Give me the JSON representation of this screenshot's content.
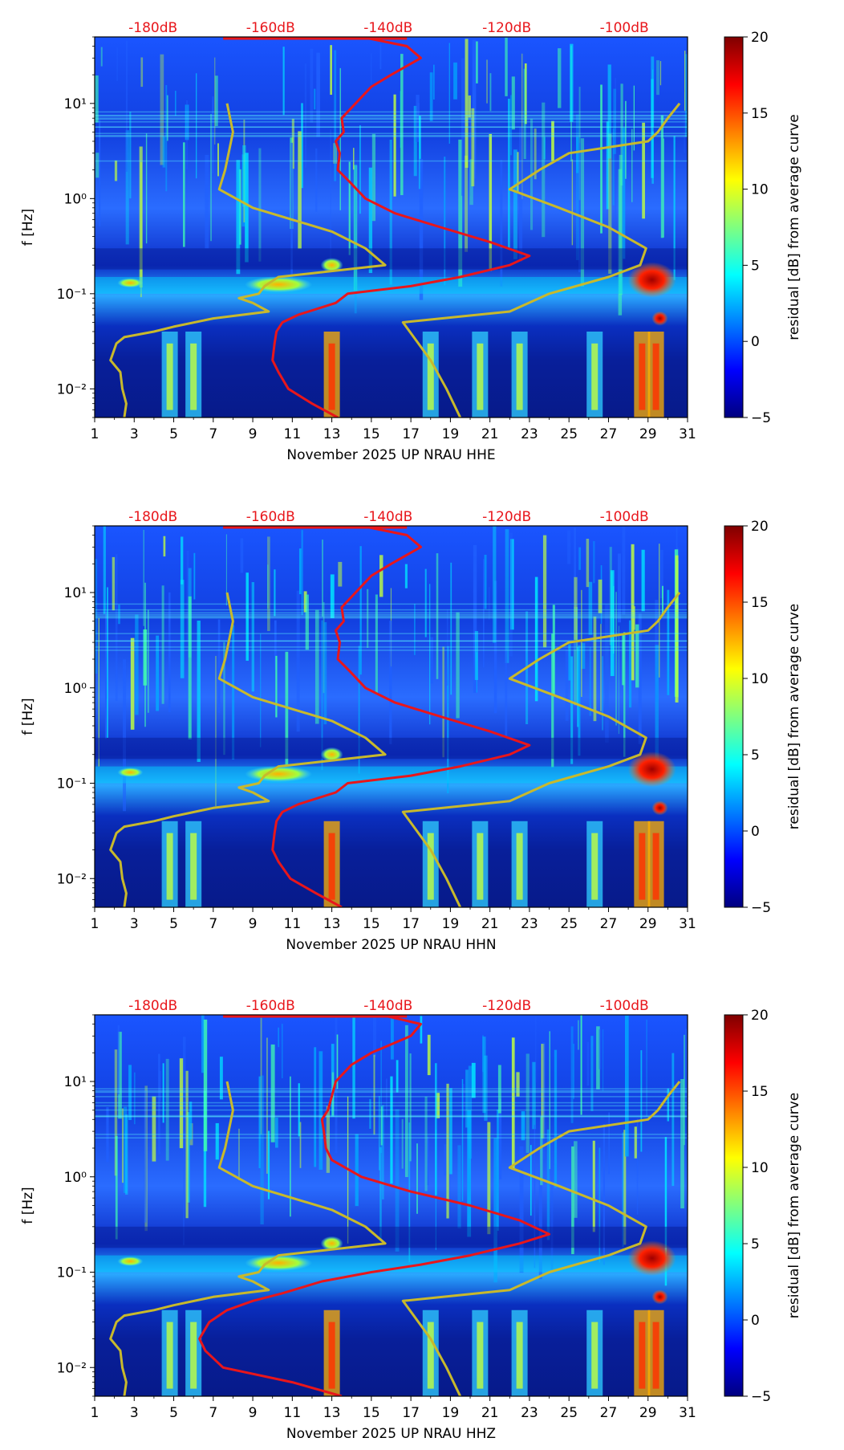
{
  "chart_data": [
    {
      "type": "heatmap",
      "panel": "HHE",
      "xlabel": "November 2025 UP NRAU  HHE",
      "ylabel": "f [Hz]",
      "x_ticks": [
        "1",
        "3",
        "5",
        "7",
        "9",
        "11",
        "13",
        "15",
        "17",
        "19",
        "21",
        "23",
        "25",
        "27",
        "29",
        "31"
      ],
      "x_range": [
        1,
        31
      ],
      "y_range": [
        0.005,
        50
      ],
      "y_ticks": [
        "10⁻²",
        "10⁻¹",
        "10⁰",
        "10¹"
      ],
      "top_labels": [
        "-180dB",
        "-160dB",
        "-140dB",
        "-120dB",
        "-100dB"
      ],
      "top_label_x": [
        3.95,
        9.9,
        15.85,
        21.85,
        27.8
      ],
      "colorbar": {
        "label": "residual [dB] from average curve",
        "min": -5,
        "max": 20,
        "ticks": [
          "20",
          "15",
          "10",
          "5",
          "0",
          "−5"
        ]
      },
      "red_curve_f": [
        50,
        40,
        30,
        20,
        15,
        10,
        7,
        5,
        4,
        3,
        2,
        1.5,
        1,
        0.7,
        0.5,
        0.35,
        0.25,
        0.2,
        0.15,
        0.12,
        0.1,
        0.08,
        0.06,
        0.05,
        0.04,
        0.03,
        0.02,
        0.015,
        0.01,
        0.007,
        0.005
      ],
      "red_curve_x": [
        14.5,
        16.8,
        17.5,
        16.0,
        15.0,
        14.2,
        13.5,
        13.6,
        13.2,
        13.4,
        13.3,
        13.9,
        14.7,
        16.2,
        18.5,
        21.0,
        23.0,
        22.0,
        19.5,
        17.0,
        13.8,
        13.2,
        11.3,
        10.5,
        10.2,
        10.1,
        10.0,
        10.3,
        10.8,
        12.0,
        13.3
      ],
      "yellow_curve_f": [
        10,
        5,
        2,
        1.25,
        0.8,
        0.45,
        0.3,
        0.2,
        0.15,
        0.12,
        0.1,
        0.09,
        0.08,
        0.065,
        0.055,
        0.045,
        0.04,
        0.035,
        0.03,
        0.02,
        0.015,
        0.01,
        0.007,
        0.005
      ],
      "yellow_curve_x": [
        7.7,
        8.0,
        7.6,
        7.3,
        9.0,
        13.0,
        14.7,
        15.7,
        10.3,
        9.6,
        9.3,
        8.3,
        9.0,
        9.8,
        7.0,
        5.0,
        4.0,
        2.5,
        2.1,
        1.8,
        2.3,
        2.4,
        2.6,
        2.5
      ],
      "yellow_curve2_f": [
        0.005,
        0.01,
        0.02,
        0.05,
        0.065,
        0.1,
        0.15,
        0.2,
        0.3,
        0.5,
        0.8,
        1.25,
        2,
        3,
        4,
        5,
        7,
        10
      ],
      "yellow_curve2_x": [
        19.5,
        18.8,
        18.0,
        16.6,
        22.0,
        24.0,
        27.0,
        28.6,
        28.9,
        27.0,
        24.5,
        22.0,
        23.5,
        25.0,
        29.0,
        29.5,
        30.0,
        30.6
      ]
    },
    {
      "type": "heatmap",
      "panel": "HHN",
      "xlabel": "November 2025 UP NRAU  HHN",
      "ylabel": "f [Hz]",
      "x_ticks": [
        "1",
        "3",
        "5",
        "7",
        "9",
        "11",
        "13",
        "15",
        "17",
        "19",
        "21",
        "23",
        "25",
        "27",
        "29",
        "31"
      ],
      "x_range": [
        1,
        31
      ],
      "y_range": [
        0.005,
        50
      ],
      "y_ticks": [
        "10⁻²",
        "10⁻¹",
        "10⁰",
        "10¹"
      ],
      "top_labels": [
        "-180dB",
        "-160dB",
        "-140dB",
        "-120dB",
        "-100dB"
      ],
      "top_label_x": [
        3.95,
        9.9,
        15.85,
        21.85,
        27.8
      ],
      "colorbar": {
        "label": "residual [dB] from average curve",
        "min": -5,
        "max": 20,
        "ticks": [
          "20",
          "15",
          "10",
          "5",
          "0",
          "−5"
        ]
      },
      "red_curve_f": [
        50,
        40,
        30,
        20,
        15,
        10,
        7,
        5,
        4,
        3,
        2,
        1.5,
        1,
        0.7,
        0.5,
        0.35,
        0.25,
        0.2,
        0.15,
        0.12,
        0.1,
        0.08,
        0.06,
        0.05,
        0.04,
        0.03,
        0.02,
        0.015,
        0.01,
        0.007,
        0.005
      ],
      "red_curve_x": [
        14.5,
        16.8,
        17.5,
        16.0,
        15.0,
        14.2,
        13.5,
        13.6,
        13.2,
        13.4,
        13.3,
        13.9,
        14.7,
        16.2,
        18.5,
        21.0,
        23.0,
        22.0,
        19.5,
        17.0,
        13.8,
        13.2,
        11.3,
        10.5,
        10.2,
        10.1,
        10.0,
        10.3,
        10.9,
        12.2,
        13.5
      ],
      "yellow_curve_f": [
        10,
        5,
        2,
        1.25,
        0.8,
        0.45,
        0.3,
        0.2,
        0.15,
        0.12,
        0.1,
        0.09,
        0.08,
        0.065,
        0.055,
        0.045,
        0.04,
        0.035,
        0.03,
        0.02,
        0.015,
        0.01,
        0.007,
        0.005
      ],
      "yellow_curve_x": [
        7.7,
        8.0,
        7.6,
        7.3,
        9.0,
        13.0,
        14.7,
        15.7,
        10.3,
        9.6,
        9.3,
        8.3,
        9.0,
        9.8,
        7.0,
        5.0,
        4.0,
        2.5,
        2.1,
        1.8,
        2.3,
        2.4,
        2.6,
        2.5
      ],
      "yellow_curve2_f": [
        0.005,
        0.01,
        0.02,
        0.05,
        0.065,
        0.1,
        0.15,
        0.2,
        0.3,
        0.5,
        0.8,
        1.25,
        2,
        3,
        4,
        5,
        7,
        10
      ],
      "yellow_curve2_x": [
        19.5,
        18.8,
        18.0,
        16.6,
        22.0,
        24.0,
        27.0,
        28.6,
        28.9,
        27.0,
        24.5,
        22.0,
        23.5,
        25.0,
        29.0,
        29.5,
        30.0,
        30.6
      ]
    },
    {
      "type": "heatmap",
      "panel": "HHZ",
      "xlabel": "November 2025 UP NRAU  HHZ",
      "ylabel": "f [Hz]",
      "x_ticks": [
        "1",
        "3",
        "5",
        "7",
        "9",
        "11",
        "13",
        "15",
        "17",
        "19",
        "21",
        "23",
        "25",
        "27",
        "29",
        "31"
      ],
      "x_range": [
        1,
        31
      ],
      "y_range": [
        0.005,
        50
      ],
      "y_ticks": [
        "10⁻²",
        "10⁻¹",
        "10⁰",
        "10¹"
      ],
      "top_labels": [
        "-180dB",
        "-160dB",
        "-140dB",
        "-120dB",
        "-100dB"
      ],
      "top_label_x": [
        3.95,
        9.9,
        15.85,
        21.85,
        27.8
      ],
      "colorbar": {
        "label": "residual [dB] from average curve",
        "min": -5,
        "max": 20,
        "ticks": [
          "20",
          "15",
          "10",
          "5",
          "0",
          "−5"
        ]
      },
      "red_curve_f": [
        50,
        40,
        30,
        20,
        15,
        10,
        7,
        5,
        4,
        3,
        2,
        1.5,
        1,
        0.7,
        0.5,
        0.35,
        0.25,
        0.2,
        0.15,
        0.12,
        0.1,
        0.08,
        0.06,
        0.05,
        0.04,
        0.03,
        0.02,
        0.015,
        0.01,
        0.007,
        0.005
      ],
      "red_curve_x": [
        15.5,
        17.5,
        17.0,
        15.0,
        14.0,
        13.2,
        13.0,
        12.8,
        12.5,
        12.6,
        12.7,
        13.0,
        14.5,
        17.0,
        20.0,
        22.5,
        24.0,
        22.5,
        20.0,
        17.5,
        15.0,
        12.5,
        10.5,
        9.0,
        7.7,
        6.8,
        6.3,
        6.6,
        7.5,
        11.0,
        13.5
      ],
      "yellow_curve_f": [
        10,
        5,
        2,
        1.25,
        0.8,
        0.45,
        0.3,
        0.2,
        0.15,
        0.12,
        0.1,
        0.09,
        0.08,
        0.065,
        0.055,
        0.045,
        0.04,
        0.035,
        0.03,
        0.02,
        0.015,
        0.01,
        0.007,
        0.005
      ],
      "yellow_curve_x": [
        7.7,
        8.0,
        7.6,
        7.3,
        9.0,
        13.0,
        14.7,
        15.7,
        10.3,
        9.6,
        9.3,
        8.3,
        9.0,
        9.8,
        7.0,
        5.0,
        4.0,
        2.5,
        2.1,
        1.8,
        2.3,
        2.4,
        2.6,
        2.5
      ],
      "yellow_curve2_f": [
        0.005,
        0.01,
        0.02,
        0.05,
        0.065,
        0.1,
        0.15,
        0.2,
        0.3,
        0.5,
        0.8,
        1.25,
        2,
        3,
        4,
        5,
        7,
        10
      ],
      "yellow_curve2_x": [
        19.5,
        18.8,
        18.0,
        16.6,
        22.0,
        24.0,
        27.0,
        28.6,
        28.9,
        27.0,
        24.5,
        22.0,
        23.5,
        25.0,
        29.0,
        29.5,
        30.0,
        30.6
      ]
    }
  ]
}
